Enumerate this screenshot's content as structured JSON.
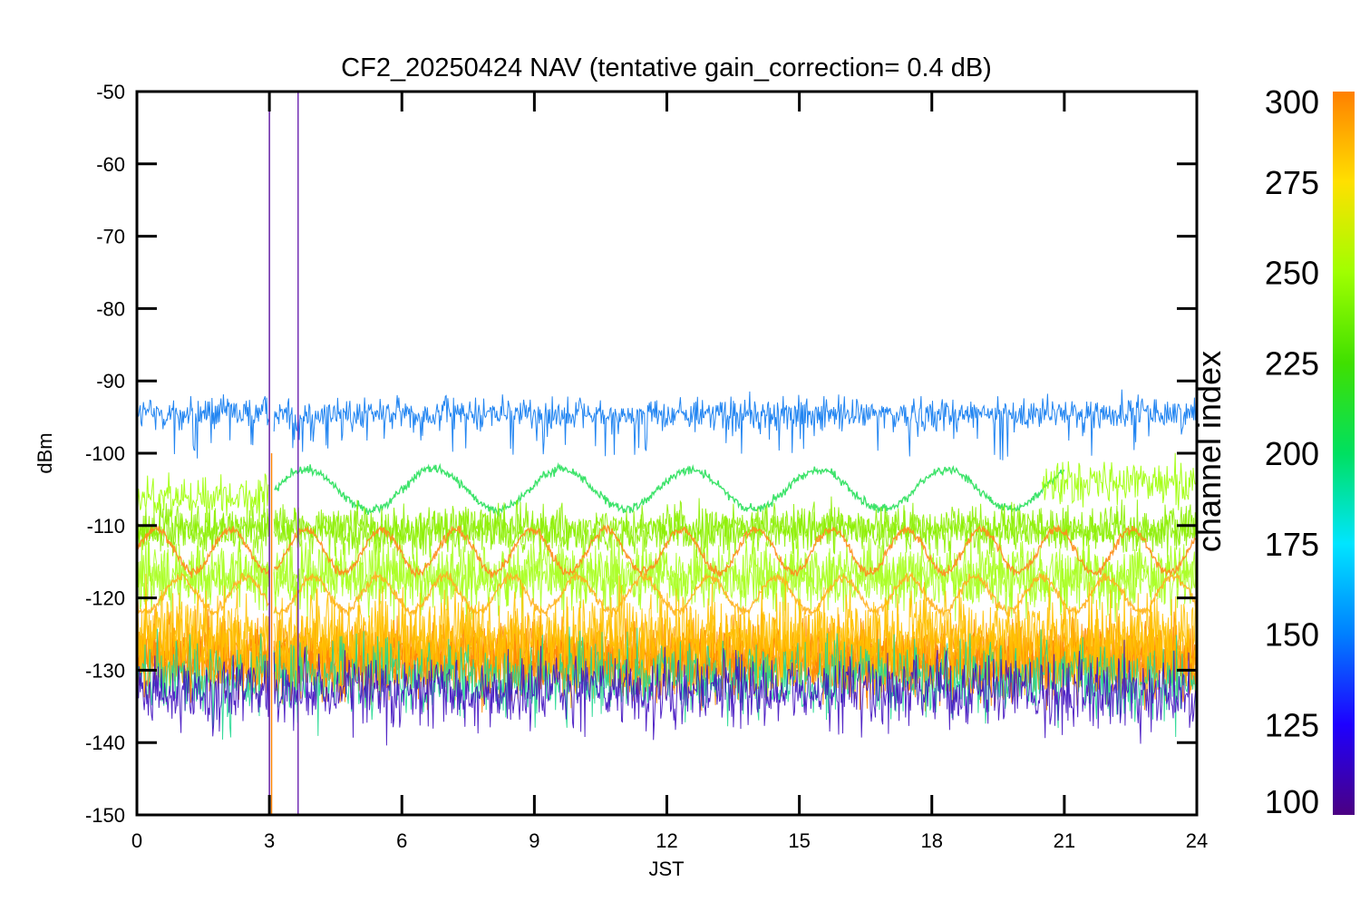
{
  "chart_data": {
    "type": "line",
    "title": "CF2_20250424 NAV (tentative gain_correction=  0.4 dB)",
    "xlabel": "JST",
    "ylabel": "dBm",
    "xlim": [
      0,
      24
    ],
    "ylim": [
      -150,
      -50
    ],
    "x_ticks": [
      "0",
      "3",
      "6",
      "9",
      "12",
      "15",
      "18",
      "21",
      "24"
    ],
    "y_ticks": [
      "-50",
      "-60",
      "-70",
      "-80",
      "-90",
      "-100",
      "-110",
      "-120",
      "-130",
      "-140",
      "-150"
    ],
    "grid": false,
    "colorbar": {
      "label": "channel index",
      "range": [
        100,
        300
      ],
      "ticks": [
        "100",
        "125",
        "150",
        "175",
        "200",
        "225",
        "250",
        "275",
        "300"
      ],
      "colors": [
        "#4b0082",
        "#1e00ff",
        "#0080ff",
        "#00e5ff",
        "#00e060",
        "#40e000",
        "#a0ff00",
        "#ffe000",
        "#ff8000"
      ]
    },
    "series": [
      {
        "channel": 150,
        "color": "#0a78f0",
        "kind": "noise",
        "center": -94.5,
        "noise": 1.6,
        "spikes_down_to": -101,
        "density": 1
      },
      {
        "channel": 240,
        "color": "#28e05a",
        "kind": "sine",
        "center": -105,
        "amplitude": 2.8,
        "period_h": 2.9,
        "phase_h": 0.2,
        "x_start": 3.0,
        "x_end": 21.0
      },
      {
        "channel": 255,
        "color": "#8cf000",
        "kind": "noise",
        "center": -110.5,
        "noise": 2.2,
        "density": 2
      },
      {
        "channel": 255,
        "color": "#9cff00",
        "kind": "noise",
        "center": -106,
        "noise": 2.0,
        "x_start": 0,
        "x_end": 3.0,
        "density": 1
      },
      {
        "channel": 255,
        "color": "#9cff00",
        "kind": "noise",
        "center": -104,
        "noise": 2.2,
        "x_start": 20.5,
        "x_end": 24,
        "density": 1
      },
      {
        "channel": 250,
        "color": "#a8ff20",
        "kind": "noise",
        "center": -117,
        "noise": 3.2,
        "density": 2
      },
      {
        "channel": 285,
        "color": "#ff8c1a",
        "kind": "sine",
        "center": -113.5,
        "amplitude": 3.0,
        "period_h": 1.7,
        "phase_h": 0.0,
        "x_start": 0,
        "x_end": 24
      },
      {
        "channel": 280,
        "color": "#ffb020",
        "kind": "sine",
        "center": -119.5,
        "amplitude": 2.4,
        "period_h": 1.5,
        "phase_h": 0.6,
        "x_start": 0,
        "x_end": 24
      },
      {
        "channel": 290,
        "color": "#ff8a00",
        "kind": "noise",
        "center": -128.5,
        "noise": 3.5,
        "density": 4
      },
      {
        "channel": 275,
        "color": "#ffc000",
        "kind": "noise",
        "center": -126,
        "noise": 4.5,
        "density": 2
      },
      {
        "channel": 200,
        "color": "#20d890",
        "kind": "noise",
        "center": -131,
        "noise": 4.0,
        "density": 1
      },
      {
        "channel": 120,
        "color": "#4010c0",
        "kind": "noise",
        "center": -133,
        "noise": 3.5,
        "density": 1
      }
    ],
    "spikes": [
      {
        "x": 3.0,
        "y_from": -150,
        "y_to": -51.5,
        "color": "#5a10a0"
      },
      {
        "x": 3.05,
        "y_from": -150,
        "y_to": -100,
        "color": "#ff8000"
      },
      {
        "x": 3.65,
        "y_from": -150,
        "y_to": -50,
        "color": "#6a20b0"
      }
    ],
    "gap": {
      "x_from": 3.0,
      "x_to": 3.1
    }
  }
}
